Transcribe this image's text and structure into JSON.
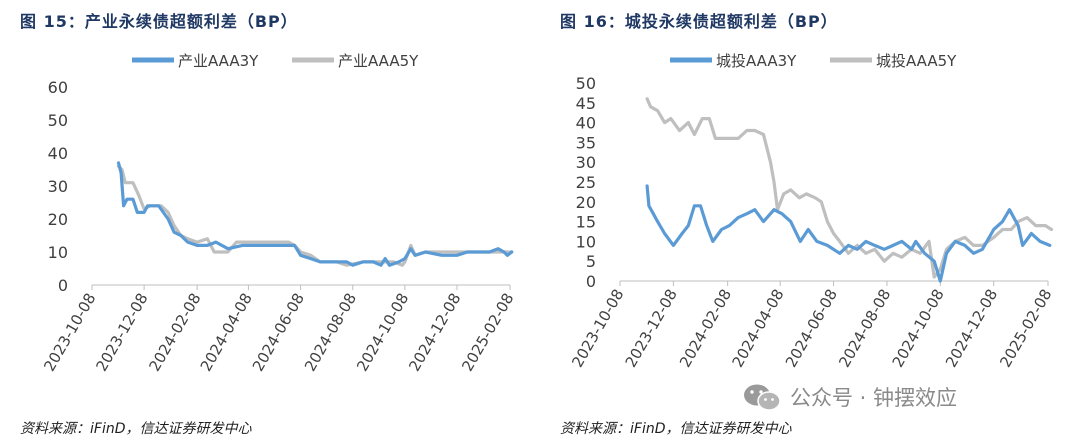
{
  "left": {
    "title": "图 15：产业永续债超额利差（BP）",
    "source": "资料来源：iFinD，信达证券研发中心"
  },
  "right": {
    "title": "图 16：城投永续债超额利差（BP）",
    "source": "资料来源：iFinD，信达证券研发中心"
  },
  "watermark": {
    "text": "公众号 · 钟摆效应",
    "icon": "wechat-icon"
  },
  "colors": {
    "series1": "#5b9bd5",
    "series2": "#bfbfbf",
    "title": "#1f3864",
    "axis": "#bfbfbf"
  },
  "chart_data": [
    {
      "type": "line",
      "title": "图 15：产业永续债超额利差（BP）",
      "xlabel": "",
      "ylabel": "",
      "x_ticks": [
        "2023-10-08",
        "2023-12-08",
        "2024-02-08",
        "2024-04-08",
        "2024-06-08",
        "2024-08-08",
        "2024-10-08",
        "2024-12-08",
        "2025-02-08"
      ],
      "x_range": [
        "2023-10-08",
        "2025-02-08"
      ],
      "ylim": [
        0,
        60
      ],
      "y_ticks": [
        0,
        10,
        20,
        30,
        40,
        50,
        60
      ],
      "grid": false,
      "legend": "top-center",
      "series": [
        {
          "name": "产业AAA3Y",
          "points": [
            [
              "2023-11-08",
              37
            ],
            [
              "2023-11-11",
              34
            ],
            [
              "2023-11-14",
              24
            ],
            [
              "2023-11-18",
              26
            ],
            [
              "2023-11-25",
              26
            ],
            [
              "2023-11-30",
              22
            ],
            [
              "2023-12-08",
              22
            ],
            [
              "2023-12-12",
              24
            ],
            [
              "2023-12-25",
              24
            ],
            [
              "2024-01-05",
              20
            ],
            [
              "2024-01-12",
              16
            ],
            [
              "2024-01-20",
              15
            ],
            [
              "2024-01-28",
              13
            ],
            [
              "2024-02-08",
              12
            ],
            [
              "2024-02-20",
              12
            ],
            [
              "2024-03-01",
              13
            ],
            [
              "2024-03-15",
              11
            ],
            [
              "2024-04-01",
              12
            ],
            [
              "2024-04-15",
              12
            ],
            [
              "2024-05-01",
              12
            ],
            [
              "2024-05-20",
              12
            ],
            [
              "2024-06-01",
              12
            ],
            [
              "2024-06-08",
              9
            ],
            [
              "2024-06-20",
              8
            ],
            [
              "2024-07-01",
              7
            ],
            [
              "2024-07-20",
              7
            ],
            [
              "2024-08-01",
              7
            ],
            [
              "2024-08-08",
              6
            ],
            [
              "2024-08-20",
              7
            ],
            [
              "2024-09-01",
              7
            ],
            [
              "2024-09-10",
              6
            ],
            [
              "2024-09-15",
              8
            ],
            [
              "2024-09-20",
              6
            ],
            [
              "2024-10-01",
              7
            ],
            [
              "2024-10-08",
              8
            ],
            [
              "2024-10-15",
              11
            ],
            [
              "2024-10-20",
              9
            ],
            [
              "2024-11-01",
              10
            ],
            [
              "2024-11-20",
              9
            ],
            [
              "2024-12-08",
              9
            ],
            [
              "2024-12-20",
              10
            ],
            [
              "2025-01-15",
              10
            ],
            [
              "2025-01-25",
              11
            ],
            [
              "2025-02-01",
              10
            ],
            [
              "2025-02-05",
              9
            ],
            [
              "2025-02-10",
              10
            ]
          ]
        },
        {
          "name": "产业AAA5Y",
          "points": [
            [
              "2023-11-08",
              36
            ],
            [
              "2023-11-12",
              35
            ],
            [
              "2023-11-16",
              31
            ],
            [
              "2023-11-25",
              31
            ],
            [
              "2023-12-02",
              27
            ],
            [
              "2023-12-08",
              23
            ],
            [
              "2023-12-15",
              24
            ],
            [
              "2023-12-28",
              24
            ],
            [
              "2024-01-05",
              22
            ],
            [
              "2024-01-12",
              18
            ],
            [
              "2024-01-20",
              15
            ],
            [
              "2024-01-28",
              14
            ],
            [
              "2024-02-08",
              13
            ],
            [
              "2024-02-20",
              14
            ],
            [
              "2024-02-28",
              10
            ],
            [
              "2024-03-15",
              10
            ],
            [
              "2024-03-25",
              13
            ],
            [
              "2024-04-08",
              13
            ],
            [
              "2024-05-01",
              13
            ],
            [
              "2024-05-25",
              13
            ],
            [
              "2024-06-01",
              12
            ],
            [
              "2024-06-08",
              10
            ],
            [
              "2024-06-20",
              9
            ],
            [
              "2024-07-01",
              7
            ],
            [
              "2024-07-20",
              7
            ],
            [
              "2024-08-01",
              6
            ],
            [
              "2024-08-20",
              7
            ],
            [
              "2024-09-05",
              7
            ],
            [
              "2024-09-25",
              7
            ],
            [
              "2024-10-05",
              6
            ],
            [
              "2024-10-08",
              7
            ],
            [
              "2024-10-15",
              12
            ],
            [
              "2024-10-20",
              9
            ],
            [
              "2024-11-01",
              10
            ],
            [
              "2024-11-20",
              10
            ],
            [
              "2024-12-08",
              10
            ],
            [
              "2024-12-20",
              10
            ],
            [
              "2025-01-15",
              10
            ],
            [
              "2025-02-01",
              10
            ],
            [
              "2025-02-10",
              10
            ]
          ]
        }
      ]
    },
    {
      "type": "line",
      "title": "图 16：城投永续债超额利差（BP）",
      "xlabel": "",
      "ylabel": "",
      "x_ticks": [
        "2023-10-08",
        "2023-12-08",
        "2024-02-08",
        "2024-04-08",
        "2024-06-08",
        "2024-08-08",
        "2024-10-08",
        "2024-12-08",
        "2025-02-08"
      ],
      "x_range": [
        "2023-10-08",
        "2025-02-08"
      ],
      "ylim": [
        0,
        50
      ],
      "y_ticks": [
        0,
        5,
        10,
        15,
        20,
        25,
        30,
        35,
        40,
        45,
        50
      ],
      "grid": false,
      "legend": "top-center",
      "series": [
        {
          "name": "城投AAA3Y",
          "points": [
            [
              "2023-11-08",
              24
            ],
            [
              "2023-11-10",
              19
            ],
            [
              "2023-11-15",
              17
            ],
            [
              "2023-11-20",
              15
            ],
            [
              "2023-11-28",
              12
            ],
            [
              "2023-12-08",
              9
            ],
            [
              "2023-12-18",
              12
            ],
            [
              "2023-12-25",
              14
            ],
            [
              "2024-01-01",
              19
            ],
            [
              "2024-01-08",
              19
            ],
            [
              "2024-01-15",
              14
            ],
            [
              "2024-01-22",
              10
            ],
            [
              "2024-02-01",
              13
            ],
            [
              "2024-02-10",
              14
            ],
            [
              "2024-02-20",
              16
            ],
            [
              "2024-03-01",
              17
            ],
            [
              "2024-03-10",
              18
            ],
            [
              "2024-03-20",
              15
            ],
            [
              "2024-04-01",
              18
            ],
            [
              "2024-04-10",
              17
            ],
            [
              "2024-04-20",
              15
            ],
            [
              "2024-05-01",
              10
            ],
            [
              "2024-05-10",
              13
            ],
            [
              "2024-05-20",
              10
            ],
            [
              "2024-06-01",
              9
            ],
            [
              "2024-06-15",
              7
            ],
            [
              "2024-06-25",
              9
            ],
            [
              "2024-07-05",
              8
            ],
            [
              "2024-07-15",
              10
            ],
            [
              "2024-07-25",
              9
            ],
            [
              "2024-08-05",
              8
            ],
            [
              "2024-08-15",
              9
            ],
            [
              "2024-08-25",
              10
            ],
            [
              "2024-09-05",
              8
            ],
            [
              "2024-09-10",
              10
            ],
            [
              "2024-09-20",
              7
            ],
            [
              "2024-10-01",
              5
            ],
            [
              "2024-10-08",
              0
            ],
            [
              "2024-10-15",
              7
            ],
            [
              "2024-10-25",
              10
            ],
            [
              "2024-11-05",
              9
            ],
            [
              "2024-11-15",
              7
            ],
            [
              "2024-11-25",
              8
            ],
            [
              "2024-12-08",
              13
            ],
            [
              "2024-12-18",
              15
            ],
            [
              "2024-12-26",
              18
            ],
            [
              "2025-01-05",
              14
            ],
            [
              "2025-01-10",
              9
            ],
            [
              "2025-01-20",
              12
            ],
            [
              "2025-01-30",
              10
            ],
            [
              "2025-02-10",
              9
            ]
          ]
        },
        {
          "name": "城投AAA5Y",
          "points": [
            [
              "2023-11-08",
              46
            ],
            [
              "2023-11-12",
              44
            ],
            [
              "2023-11-20",
              43
            ],
            [
              "2023-11-28",
              40
            ],
            [
              "2023-12-05",
              41
            ],
            [
              "2023-12-15",
              38
            ],
            [
              "2023-12-25",
              40
            ],
            [
              "2024-01-01",
              37
            ],
            [
              "2024-01-10",
              41
            ],
            [
              "2024-01-18",
              41
            ],
            [
              "2024-01-25",
              36
            ],
            [
              "2024-02-08",
              36
            ],
            [
              "2024-02-20",
              36
            ],
            [
              "2024-03-01",
              38
            ],
            [
              "2024-03-10",
              38
            ],
            [
              "2024-03-20",
              37
            ],
            [
              "2024-03-28",
              30
            ],
            [
              "2024-04-01",
              25
            ],
            [
              "2024-04-05",
              18
            ],
            [
              "2024-04-12",
              22
            ],
            [
              "2024-04-20",
              23
            ],
            [
              "2024-04-30",
              21
            ],
            [
              "2024-05-08",
              22
            ],
            [
              "2024-05-18",
              21
            ],
            [
              "2024-05-25",
              20
            ],
            [
              "2024-06-01",
              15
            ],
            [
              "2024-06-08",
              12
            ],
            [
              "2024-06-15",
              10
            ],
            [
              "2024-06-25",
              7
            ],
            [
              "2024-07-05",
              9
            ],
            [
              "2024-07-15",
              7
            ],
            [
              "2024-07-25",
              8
            ],
            [
              "2024-08-05",
              5
            ],
            [
              "2024-08-15",
              7
            ],
            [
              "2024-08-25",
              6
            ],
            [
              "2024-09-05",
              8
            ],
            [
              "2024-09-15",
              7
            ],
            [
              "2024-09-25",
              10
            ],
            [
              "2024-10-01",
              1
            ],
            [
              "2024-10-08",
              3
            ],
            [
              "2024-10-15",
              8
            ],
            [
              "2024-10-25",
              10
            ],
            [
              "2024-11-05",
              11
            ],
            [
              "2024-11-15",
              9
            ],
            [
              "2024-11-25",
              9
            ],
            [
              "2024-12-08",
              11
            ],
            [
              "2024-12-18",
              13
            ],
            [
              "2024-12-28",
              13
            ],
            [
              "2025-01-05",
              15
            ],
            [
              "2025-01-15",
              16
            ],
            [
              "2025-01-25",
              14
            ],
            [
              "2025-02-05",
              14
            ],
            [
              "2025-02-12",
              13
            ]
          ]
        }
      ]
    }
  ]
}
